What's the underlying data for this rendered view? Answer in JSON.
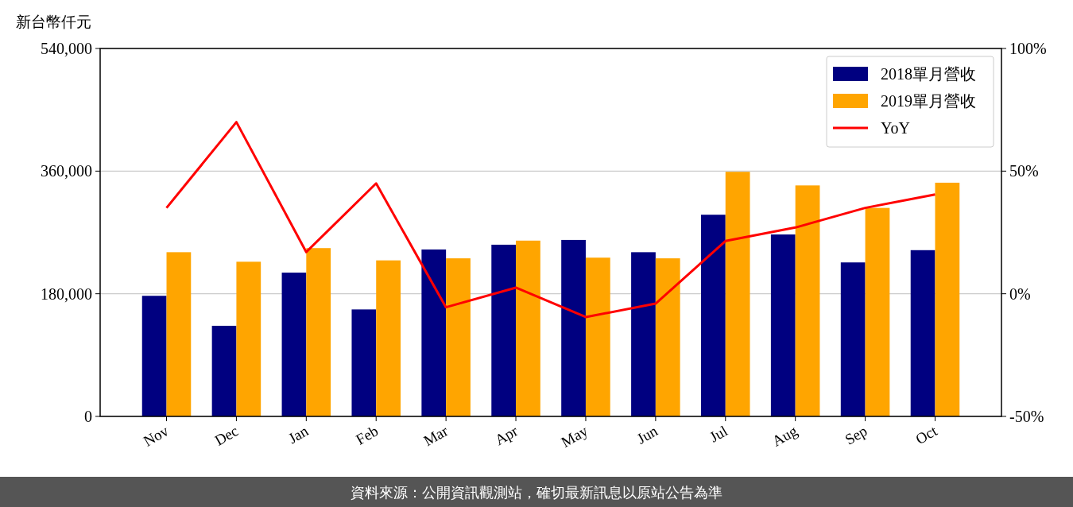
{
  "chart_data": {
    "type": "bar",
    "ylabel": "新台幣仟元",
    "categories": [
      "Nov",
      "Dec",
      "Jan",
      "Feb",
      "Mar",
      "Apr",
      "May",
      "Jun",
      "Jul",
      "Aug",
      "Sep",
      "Oct"
    ],
    "series": [
      {
        "name": "2018單月營收",
        "color": "#000080",
        "values": [
          177000,
          133000,
          211000,
          157000,
          245000,
          252000,
          259000,
          241000,
          296000,
          267000,
          226000,
          244000
        ]
      },
      {
        "name": "2019單月營收",
        "color": "#ffa500",
        "values": [
          241000,
          227000,
          247000,
          229000,
          232000,
          258000,
          233000,
          232000,
          359000,
          339000,
          306000,
          343000
        ]
      },
      {
        "name": "YoY",
        "type": "line",
        "axis": "y2",
        "color": "#ff0000",
        "values": [
          35,
          70,
          17,
          45,
          -5.5,
          2.5,
          -9.5,
          -4,
          21.5,
          27,
          35,
          40.5
        ]
      }
    ],
    "ylim": [
      0,
      540000
    ],
    "yticks": [
      {
        "value": 0,
        "label": "0"
      },
      {
        "value": 180000,
        "label": "180,000"
      },
      {
        "value": 360000,
        "label": "360,000"
      },
      {
        "value": 540000,
        "label": "540,000"
      }
    ],
    "y2lim": [
      -50,
      100
    ],
    "y2ticks": [
      {
        "value": -50,
        "label": "-50%"
      },
      {
        "value": 0,
        "label": "0%"
      },
      {
        "value": 50,
        "label": "50%"
      },
      {
        "value": 100,
        "label": "100%"
      }
    ],
    "grid": "y",
    "legend": "top right",
    "annotations": [
      "資料來源：公開資訊觀測站，確切最新訊息以原站公告為準"
    ]
  }
}
